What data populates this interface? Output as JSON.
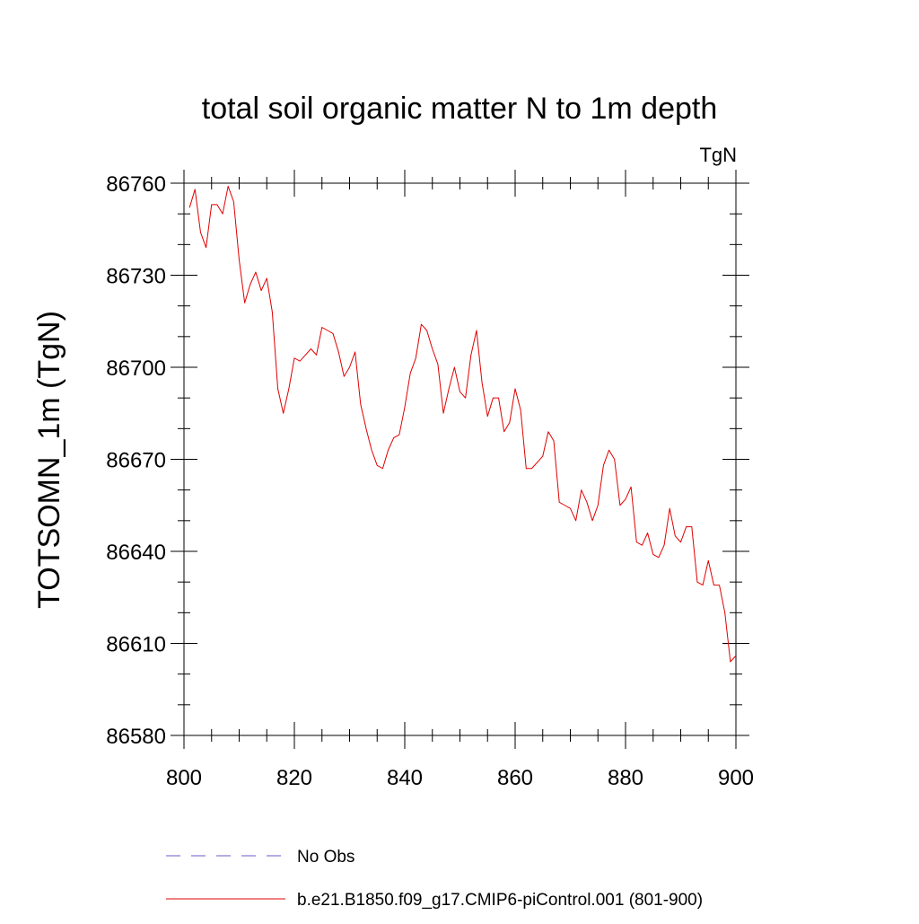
{
  "chart_data": {
    "type": "line",
    "title": "total soil organic matter N to 1m depth",
    "units_label": "TgN",
    "xlabel": "",
    "ylabel": "TOTSOMN_1m  (TgN)",
    "xlim": [
      800,
      900
    ],
    "ylim": [
      86580,
      86760
    ],
    "x_ticks": [
      800,
      820,
      840,
      860,
      880,
      900
    ],
    "x_tick_labels": [
      "800",
      "820",
      "840",
      "860",
      "880",
      "900"
    ],
    "y_ticks": [
      86580,
      86610,
      86640,
      86670,
      86700,
      86730,
      86760
    ],
    "y_tick_labels": [
      "86580",
      "86610",
      "86640",
      "86670",
      "86700",
      "86730",
      "86760"
    ],
    "grid": false,
    "legend_position": "bottom",
    "legend": [
      {
        "name": "No Obs",
        "style": "dashed",
        "color": "#6a5acd"
      },
      {
        "name": "b.e21.B1850.f09_g17.CMIP6-piControl.001 (801-900)",
        "style": "solid",
        "color": "#e00000"
      }
    ],
    "series": [
      {
        "name": "b.e21.B1850.f09_g17.CMIP6-piControl.001 (801-900)",
        "color": "#e00000",
        "x": [
          801,
          802,
          803,
          804,
          805,
          806,
          807,
          808,
          809,
          810,
          811,
          812,
          813,
          814,
          815,
          816,
          817,
          818,
          819,
          820,
          821,
          822,
          823,
          824,
          825,
          826,
          827,
          828,
          829,
          830,
          831,
          832,
          833,
          834,
          835,
          836,
          837,
          838,
          839,
          840,
          841,
          842,
          843,
          844,
          845,
          846,
          847,
          848,
          849,
          850,
          851,
          852,
          853,
          854,
          855,
          856,
          857,
          858,
          859,
          860,
          861,
          862,
          863,
          864,
          865,
          866,
          867,
          868,
          869,
          870,
          871,
          872,
          873,
          874,
          875,
          876,
          877,
          878,
          879,
          880,
          881,
          882,
          883,
          884,
          885,
          886,
          887,
          888,
          889,
          890,
          891,
          892,
          893,
          894,
          895,
          896,
          897,
          898,
          899,
          900
        ],
        "values": [
          86752,
          86758,
          86744,
          86739,
          86753,
          86753,
          86750,
          86759,
          86754,
          86735,
          86721,
          86727,
          86731,
          86725,
          86729,
          86718,
          86693,
          86685,
          86693,
          86703,
          86702,
          86704,
          86706,
          86704,
          86713,
          86712,
          86711,
          86705,
          86697,
          86700,
          86705,
          86688,
          86680,
          86673,
          86668,
          86667,
          86673,
          86677,
          86678,
          86687,
          86698,
          86703,
          86714,
          86712,
          86706,
          86701,
          86685,
          86693,
          86700,
          86692,
          86690,
          86704,
          86712,
          86695,
          86684,
          86690,
          86690,
          86679,
          86682,
          86693,
          86686,
          86667,
          86667,
          86669,
          86671,
          86679,
          86676,
          86656,
          86655,
          86654,
          86650,
          86660,
          86656,
          86650,
          86655,
          86668,
          86673,
          86670,
          86655,
          86657,
          86661,
          86643,
          86642,
          86646,
          86639,
          86638,
          86642,
          86654,
          86645,
          86643,
          86648,
          86648,
          86630,
          86629,
          86637,
          86629,
          86629,
          86620,
          86604,
          86606
        ]
      }
    ]
  }
}
